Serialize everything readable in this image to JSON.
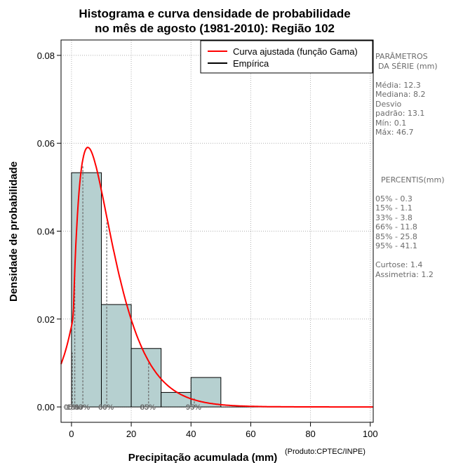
{
  "chart_data": {
    "type": "bar",
    "title_line1": "Histograma e curva densidade de probabilidade",
    "title_line2": "no mês de agosto (1981-2010): Região 102",
    "xlabel": "Precipitação acumulada (mm)",
    "ylabel": "Densidade de probabilidade",
    "credit": "(Produto:CPTEC/INPE)",
    "xlim": [
      -3.5,
      101
    ],
    "ylim": [
      -0.0035,
      0.0835
    ],
    "x_ticks": [
      0,
      20,
      40,
      60,
      80,
      100
    ],
    "x_tick_labels": [
      "0",
      "20",
      "40",
      "60",
      "80",
      "100"
    ],
    "y_ticks": [
      0.0,
      0.02,
      0.04,
      0.06,
      0.08
    ],
    "y_tick_labels": [
      "0.00",
      "0.02",
      "0.04",
      "0.06",
      "0.08"
    ],
    "grid": true,
    "bins": [
      {
        "x0": 0,
        "x1": 10,
        "density": 0.0533
      },
      {
        "x0": 10,
        "x1": 20,
        "density": 0.0233
      },
      {
        "x0": 20,
        "x1": 30,
        "density": 0.0133
      },
      {
        "x0": 30,
        "x1": 40,
        "density": 0.0033
      },
      {
        "x0": 40,
        "x1": 50,
        "density": 0.0067
      }
    ],
    "fitted_curve": {
      "name": "Curva ajustada (função Gama)",
      "color": "#ff0000",
      "shape": 1.8,
      "scale": 6.833
    },
    "empirical": {
      "name": "Empírica",
      "color": "#000000"
    },
    "legend_position": "top-right",
    "percentile_markers": [
      {
        "label": "05%",
        "value": 0.3
      },
      {
        "label": "15%",
        "value": 1.1
      },
      {
        "label": "33%",
        "value": 3.8
      },
      {
        "label": "66%",
        "value": 11.8
      },
      {
        "label": "85%",
        "value": 25.8
      },
      {
        "label": "95%",
        "value": 41.1
      }
    ],
    "colors": {
      "bar_fill": "#b6d0d0",
      "bar_stroke": "#000000",
      "grid": "#b0b0b0",
      "percentile_line": "#6b6b6b"
    }
  },
  "side_panel": {
    "params_title_1": "PARÂMETROS",
    "params_title_2": "DA SÉRIE (mm)",
    "media": "Média:  12.3",
    "mediana": "Mediana:  8.2",
    "desvio_1": "Desvio",
    "desvio_2": "padrão:  13.1",
    "min": "Mín:  0.1",
    "max": "Máx:  46.7",
    "percentis_title": "PERCENTIS(mm)",
    "p05": "05% -   0.3",
    "p15": "15% -   1.1",
    "p33": "33% -   3.8",
    "p66": "66% -   11.8",
    "p85": "85% -   25.8",
    "p95": "95% -   41.1",
    "curtose": "Curtose:  1.4",
    "assimetria": "Assimetria:  1.2"
  }
}
